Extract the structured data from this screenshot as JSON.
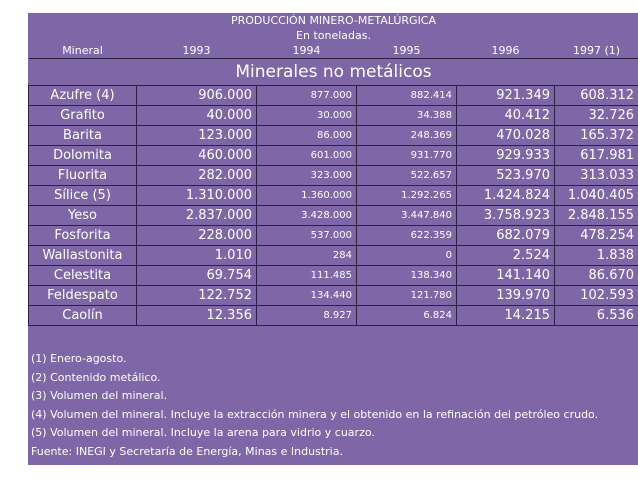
{
  "title": "PRODUCCIÓN MINERO-METALÚRGICA",
  "subtitle": "En toneladas.",
  "headers": [
    "Mineral",
    "1993",
    "1994",
    "1995",
    "1996",
    "1997 (1)"
  ],
  "section": "Minerales no metálicos",
  "rows": [
    {
      "name": "Azufre (4)",
      "v1993": "906.000",
      "v1994": "877.000",
      "v1995": "882.414",
      "v1996": "921.349",
      "v1997": "608.312"
    },
    {
      "name": "Grafito",
      "v1993": "40.000",
      "v1994": "30.000",
      "v1995": "34.388",
      "v1996": "40.412",
      "v1997": "32.726"
    },
    {
      "name": "Barita",
      "v1993": "123.000",
      "v1994": "86.000",
      "v1995": "248.369",
      "v1996": "470.028",
      "v1997": "165.372"
    },
    {
      "name": "Dolomita",
      "v1993": "460.000",
      "v1994": "601.000",
      "v1995": "931.770",
      "v1996": "929.933",
      "v1997": "617.981"
    },
    {
      "name": "Fluorita",
      "v1993": "282.000",
      "v1994": "323.000",
      "v1995": "522.657",
      "v1996": "523.970",
      "v1997": "313.033"
    },
    {
      "name": "Sílice (5)",
      "v1993": "1.310.000",
      "v1994": "1.360.000",
      "v1995": "1.292.265",
      "v1996": "1.424.824",
      "v1997": "1.040.405"
    },
    {
      "name": "Yeso",
      "v1993": "2.837.000",
      "v1994": "3.428.000",
      "v1995": "3.447.840",
      "v1996": "3.758.923",
      "v1997": "2.848.155"
    },
    {
      "name": "Fosforita",
      "v1993": "228.000",
      "v1994": "537.000",
      "v1995": "622.359",
      "v1996": "682.079",
      "v1997": "478.254"
    },
    {
      "name": "Wallastonita",
      "v1993": "1.010",
      "v1994": "284",
      "v1995": "0",
      "v1996": "2.524",
      "v1997": "1.838"
    },
    {
      "name": "Celestita",
      "v1993": "69.754",
      "v1994": "111.485",
      "v1995": "138.340",
      "v1996": "141.140",
      "v1997": "86.670"
    },
    {
      "name": "Feldespato",
      "v1993": "122.752",
      "v1994": "134.440",
      "v1995": "121.780",
      "v1996": "139.970",
      "v1997": "102.593"
    },
    {
      "name": "Caolín",
      "v1993": "12.356",
      "v1994": "8.927",
      "v1995": "6.824",
      "v1996": "14.215",
      "v1997": "6.536"
    }
  ],
  "notes": [
    "(1) Enero-agosto.",
    "(2) Contenido metálico.",
    "(3) Volumen del mineral.",
    "(4) Volumen del mineral. Incluye la extracción minera y el obtenido en la refinación del petróleo crudo.",
    "(5) Volumen del mineral. Incluye la arena para vidrio y cuarzo.",
    "Fuente: INEGI y Secretaría de Energía, Minas e Industria."
  ]
}
